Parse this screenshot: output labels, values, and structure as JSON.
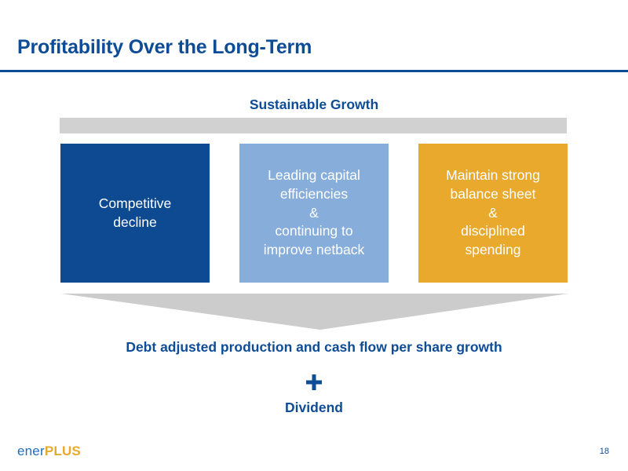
{
  "slide": {
    "title": "Profitability Over the Long-Term",
    "page_number": "18"
  },
  "diagram": {
    "top_label": "Sustainable Growth",
    "boxes": [
      {
        "text": "Competitive\ndecline",
        "color": "#0d4a92"
      },
      {
        "text": "Leading capital\nefficiencies\n&\ncontinuing to\nimprove netback",
        "color": "#87aedb"
      },
      {
        "text": "Maintain strong\nbalance sheet\n&\ndisciplined\nspending",
        "color": "#e8a92c"
      }
    ],
    "result_label": "Debt adjusted production and cash flow per share growth",
    "plus_symbol": "+",
    "dividend_label": "Dividend"
  },
  "logo": {
    "part1": "ener",
    "part2": "PLUS"
  },
  "colors": {
    "brand_blue": "#0e4c96",
    "bar_gray": "#d1d1d1",
    "arrow_gray": "#cccccc",
    "gold": "#e8a92c"
  }
}
